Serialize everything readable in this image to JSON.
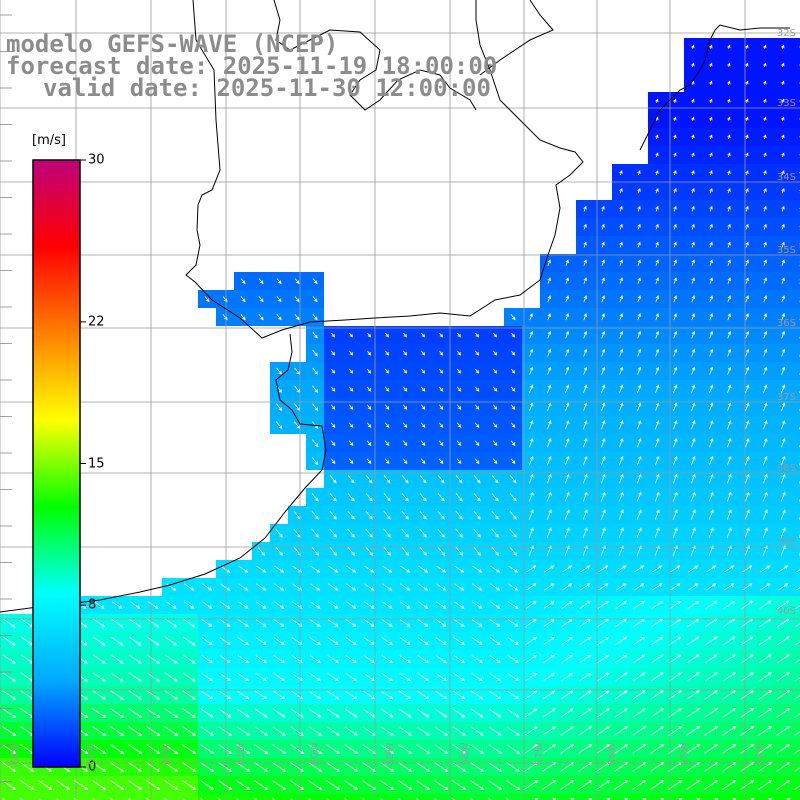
{
  "title": {
    "line1": "modelo GEFS-WAVE (NCEP)",
    "line2": "forecast date: 2025-11-19 18:00:00",
    "line3": "valid date: 2025-11-30 12:00:00"
  },
  "colorbar": {
    "units": "[m/s]",
    "ticks": [
      {
        "label": "30",
        "value": 30
      },
      {
        "label": "22",
        "value": 22
      },
      {
        "label": "15",
        "value": 15
      },
      {
        "label": "8",
        "value": 8
      },
      {
        "label": "0",
        "value": 0
      }
    ],
    "stops": [
      "#0000ff",
      "#00aaff",
      "#00ffff",
      "#00ff00",
      "#ffff00",
      "#ff8000",
      "#ff0000",
      "#c0007a"
    ]
  },
  "grid": {
    "lat_labels": [
      "32S",
      "33S",
      "34S",
      "35S",
      "36S",
      "37S",
      "38S",
      "39S",
      "40S"
    ],
    "lon_labels": [
      "64W",
      "63W",
      "62W",
      "61W",
      "60W",
      "59W",
      "58W",
      "57W",
      "56W",
      "55W",
      "54W"
    ]
  },
  "field": {
    "variable": "wind speed",
    "units": "m/s"
  },
  "colors": {
    "land": "#ffffff",
    "coast": "#000000",
    "grid": "#999999",
    "title": "#8c8c8c",
    "arrow": "#ffffff"
  }
}
